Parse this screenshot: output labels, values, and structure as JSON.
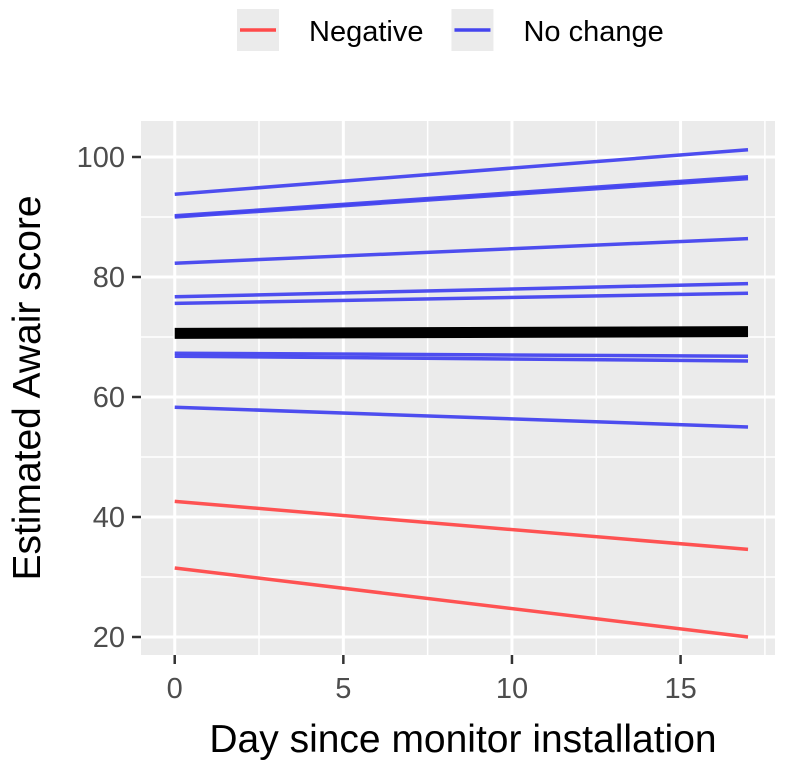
{
  "chart_data": {
    "type": "line",
    "title": "",
    "xlabel": "Day since monitor installation",
    "ylabel": "Estimated Awair score",
    "xlim": [
      -1,
      17.8
    ],
    "ylim": [
      17,
      106
    ],
    "x_ticks": [
      0,
      5,
      10,
      15
    ],
    "y_ticks": [
      20,
      40,
      60,
      80,
      100
    ],
    "grid": true,
    "legend_position": "top",
    "legend": [
      {
        "label": "Negative",
        "color": "#ff4a4a"
      },
      {
        "label": "No change",
        "color": "#4545ef"
      }
    ],
    "series": [
      {
        "group": "No change",
        "color": "#4545ef",
        "x": [
          0,
          17
        ],
        "y": [
          93.8,
          101.2
        ]
      },
      {
        "group": "No change",
        "color": "#4545ef",
        "x": [
          0,
          17
        ],
        "y": [
          90.2,
          96.7
        ]
      },
      {
        "group": "No change",
        "color": "#4545ef",
        "x": [
          0,
          17
        ],
        "y": [
          90.0,
          96.4
        ]
      },
      {
        "group": "No change",
        "color": "#4545ef",
        "x": [
          0,
          17
        ],
        "y": [
          82.3,
          86.4
        ]
      },
      {
        "group": "No change",
        "color": "#4545ef",
        "x": [
          0,
          17
        ],
        "y": [
          76.7,
          78.9
        ]
      },
      {
        "group": "No change",
        "color": "#4545ef",
        "x": [
          0,
          17
        ],
        "y": [
          75.6,
          77.3
        ]
      },
      {
        "group": "No change",
        "color": "#4545ef",
        "x": [
          0,
          17
        ],
        "y": [
          67.3,
          66.8
        ]
      },
      {
        "group": "No change",
        "color": "#4545ef",
        "x": [
          0,
          17
        ],
        "y": [
          66.8,
          66.0
        ]
      },
      {
        "group": "No change",
        "color": "#4545ef",
        "x": [
          0,
          17
        ],
        "y": [
          58.3,
          55.0
        ]
      },
      {
        "group": "Negative",
        "color": "#ff4a4a",
        "x": [
          0,
          17
        ],
        "y": [
          42.6,
          34.6
        ]
      },
      {
        "group": "Negative",
        "color": "#ff4a4a",
        "x": [
          0,
          17
        ],
        "y": [
          31.5,
          20.0
        ]
      },
      {
        "group": "Overall",
        "color": "#000000",
        "x": [
          0,
          17
        ],
        "y": [
          70.6,
          70.9
        ],
        "thick": true
      }
    ]
  }
}
